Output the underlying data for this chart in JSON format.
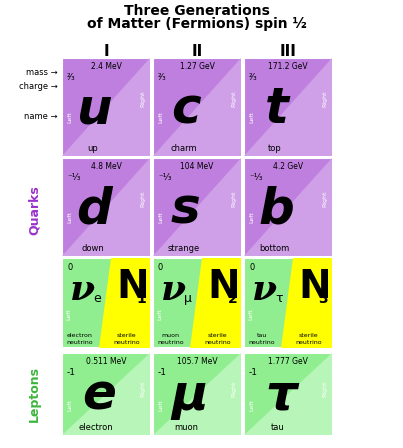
{
  "title_line1": "Three Generations",
  "title_line2": "of Matter (Fermions) spin ½",
  "generations": [
    "I",
    "II",
    "III"
  ],
  "bg_color": "#ffffff",
  "purple_bg": "#bf7fdf",
  "purple_tri": "#cfa0e8",
  "green_bg": "#90ee90",
  "green_tri": "#b8f5b8",
  "yellow_bg": "#ffff00",
  "rows": [
    {
      "row_type": "quark_up",
      "cells": [
        {
          "symbol": "u",
          "name": "up",
          "mass": "2.4 MeV",
          "charge": "²⁄₃"
        },
        {
          "symbol": "c",
          "name": "charm",
          "mass": "1.27 GeV",
          "charge": "²⁄₃"
        },
        {
          "symbol": "t",
          "name": "top",
          "mass": "171.2 GeV",
          "charge": "²⁄₃"
        }
      ]
    },
    {
      "row_type": "quark_down",
      "cells": [
        {
          "symbol": "d",
          "name": "down",
          "mass": "4.8 MeV",
          "charge": "⁻¹⁄₃"
        },
        {
          "symbol": "s",
          "name": "strange",
          "mass": "104 MeV",
          "charge": "⁻¹⁄₃"
        },
        {
          "symbol": "b",
          "name": "bottom",
          "mass": "4.2 GeV",
          "charge": "⁻¹⁄₃"
        }
      ]
    },
    {
      "row_type": "neutrino",
      "cells": [
        {
          "sym_l": "ν",
          "sub_l": "e",
          "sym_r": "N",
          "sub_r": "1",
          "name_l": "electron\nneutrino",
          "name_r": "sterile\nneutrino"
        },
        {
          "sym_l": "ν",
          "sub_l": "μ",
          "sym_r": "N",
          "sub_r": "2",
          "name_l": "muon\nneutrino",
          "name_r": "sterile\nneutrino"
        },
        {
          "sym_l": "ν",
          "sub_l": "τ",
          "sym_r": "N",
          "sub_r": "3",
          "name_l": "tau\nneutrino",
          "name_r": "sterile\nneutrino"
        }
      ]
    },
    {
      "row_type": "lepton",
      "cells": [
        {
          "symbol": "e",
          "name": "electron",
          "mass": "0.511 MeV",
          "charge": "-1"
        },
        {
          "symbol": "μ",
          "name": "muon",
          "mass": "105.7 MeV",
          "charge": "-1"
        },
        {
          "symbol": "τ",
          "name": "tau",
          "mass": "1.777 GeV",
          "charge": "-1"
        }
      ]
    }
  ]
}
